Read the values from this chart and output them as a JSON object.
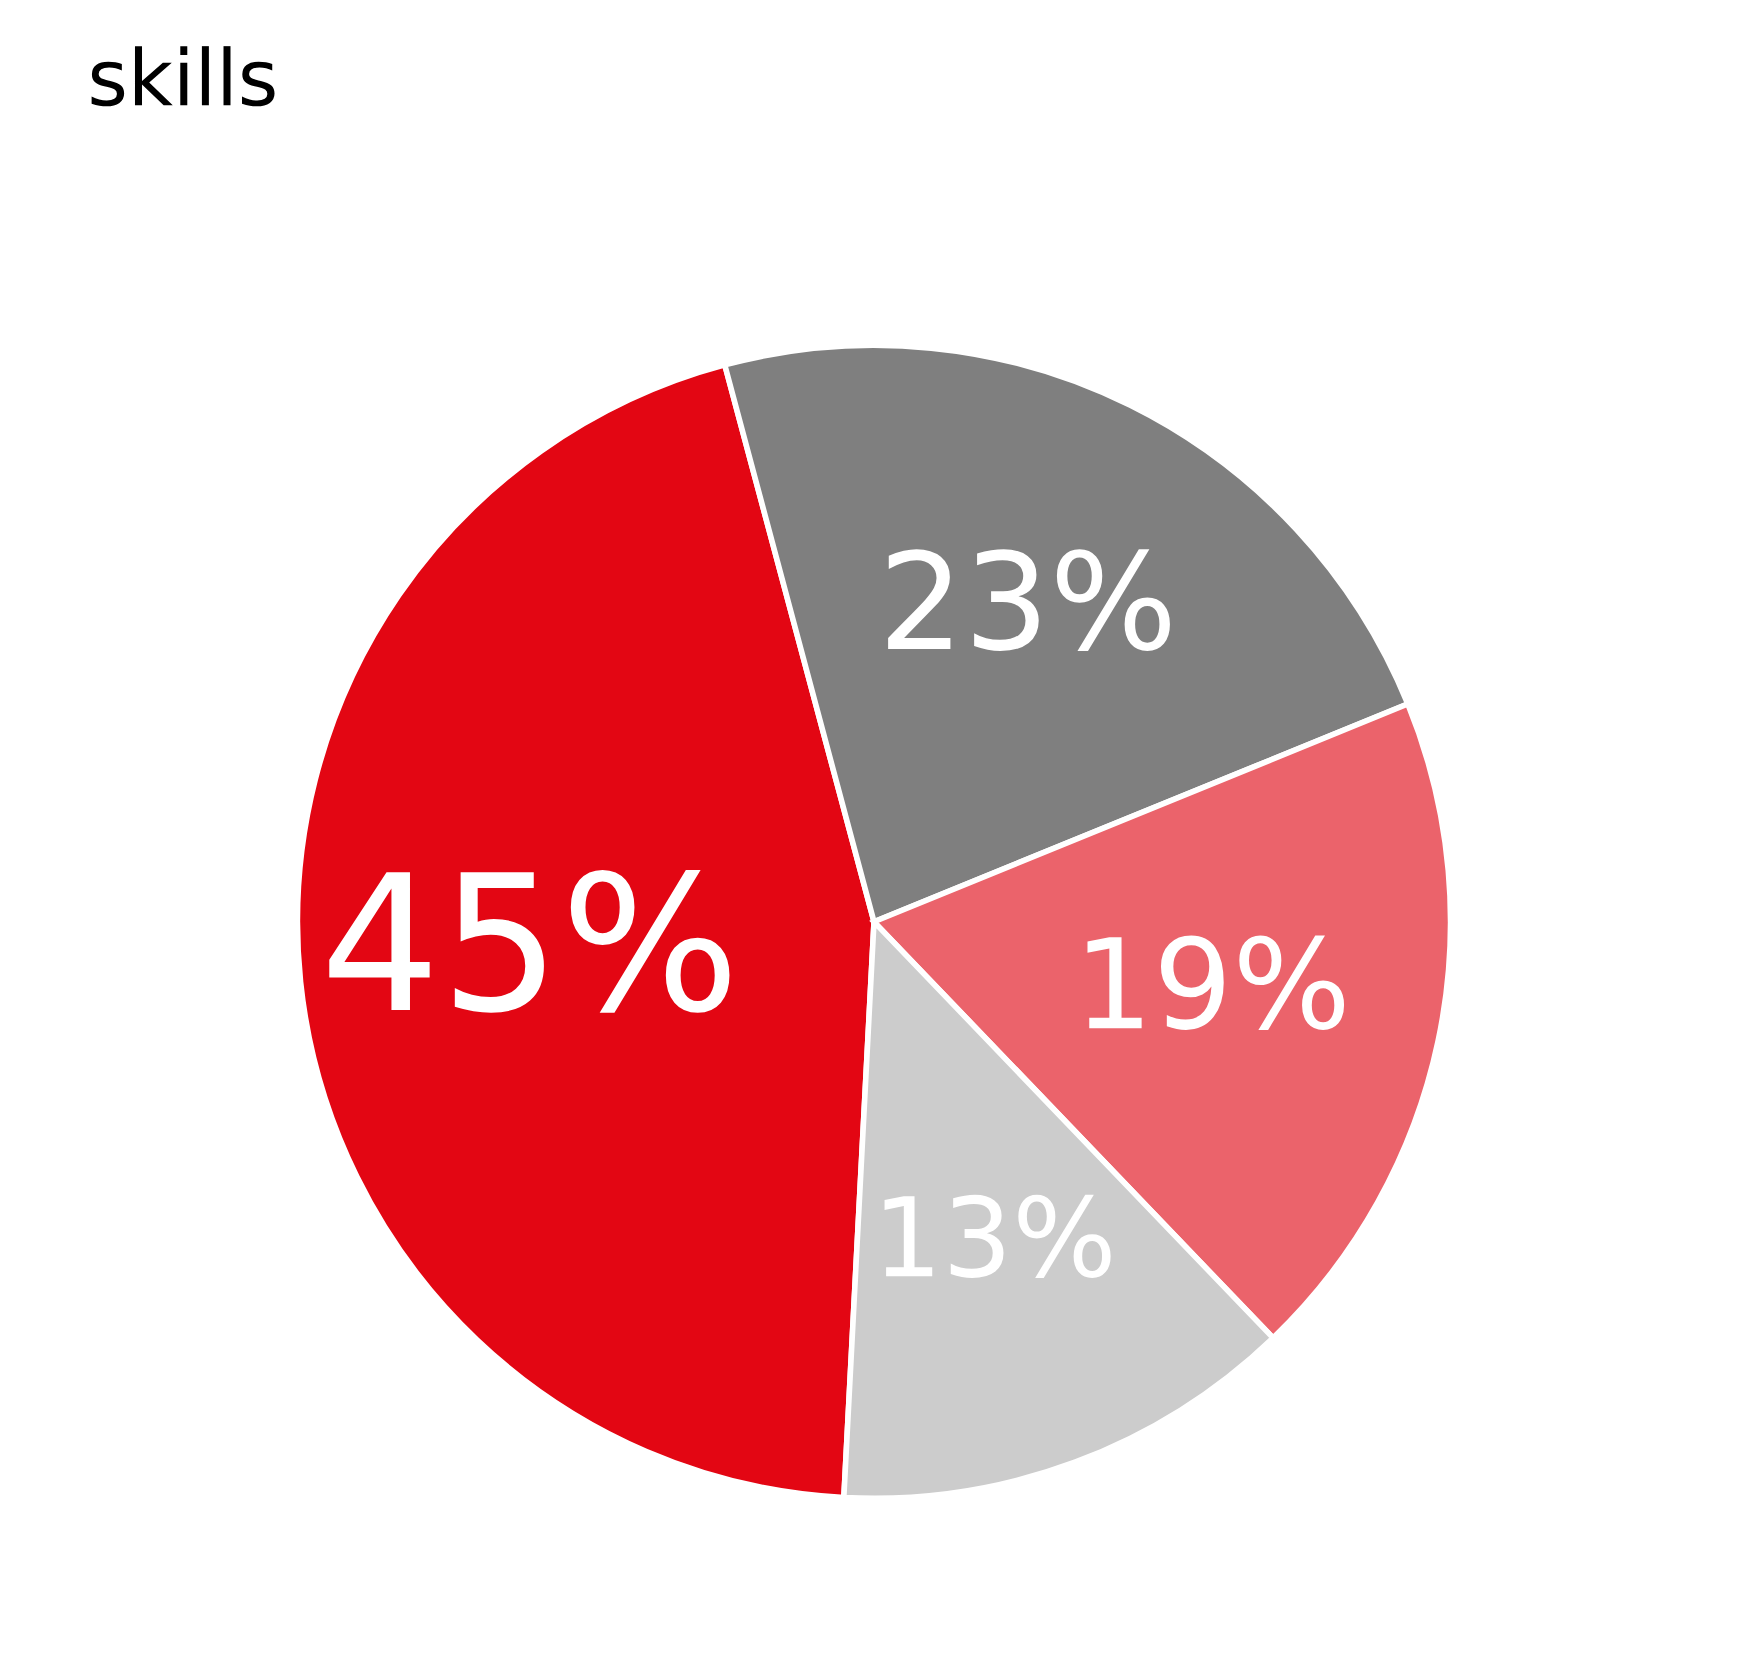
{
  "chart_data": {
    "type": "pie",
    "title": "skills",
    "categories": [
      null,
      null,
      null,
      null
    ],
    "values": [
      45,
      23,
      19,
      13
    ],
    "value_labels": [
      "45%",
      "23%",
      "19%",
      "13%"
    ],
    "colors": [
      "#e30613",
      "#7f7f7f",
      "#eb636b",
      "#cccccc"
    ]
  }
}
